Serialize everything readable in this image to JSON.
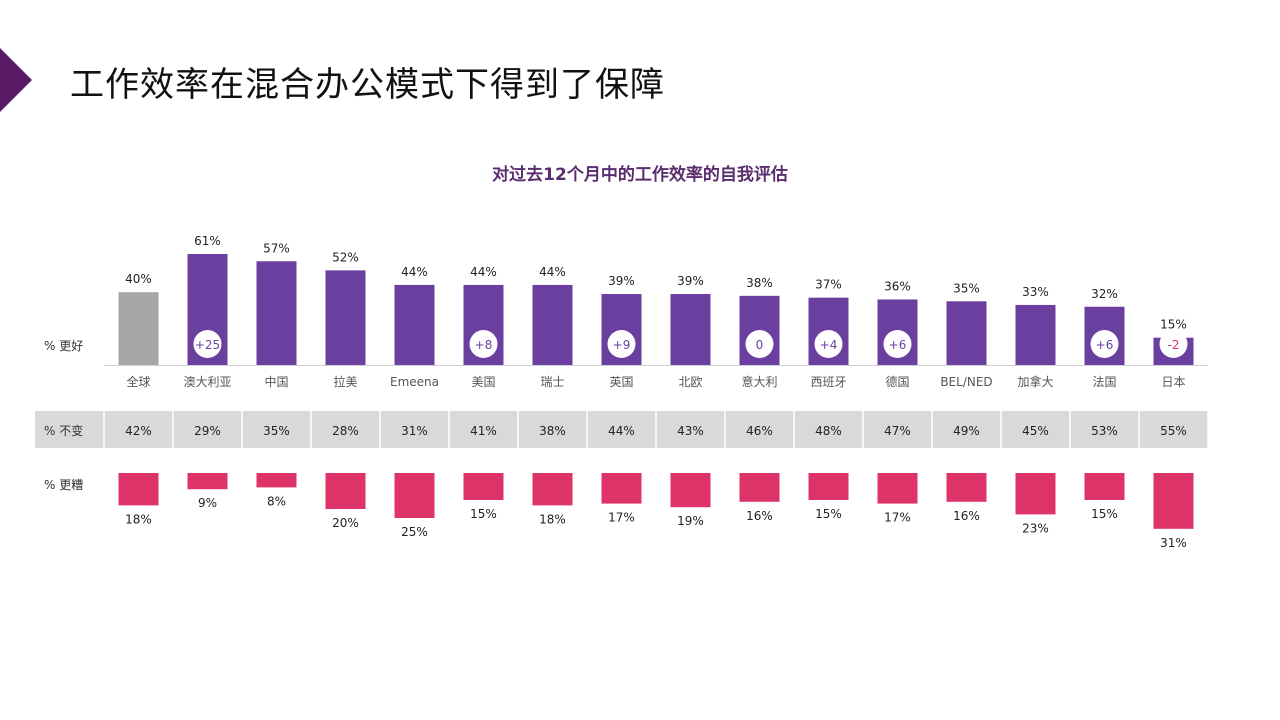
{
  "slide": {
    "title": "工作效率在混合办公模式下得到了保障"
  },
  "colors": {
    "accent": "#5a1a66",
    "better_bar": "#6b3fa0",
    "global_bar": "#a6a6a6",
    "worse_bar": "#de3368",
    "same_row_bg": "#d9d9d9",
    "negative_delta": "#de3368"
  },
  "chart_data": {
    "type": "bar",
    "title": "对过去12个月中的工作效率的自我评估",
    "categories": [
      "全球",
      "澳大利亚",
      "中国",
      "拉美",
      "Emeena",
      "美国",
      "瑞士",
      "英国",
      "北欧",
      "意大利",
      "西班牙",
      "德国",
      "BEL/NED",
      "加拿大",
      "法国",
      "日本"
    ],
    "row_labels": {
      "better": "% 更好",
      "same": "% 不变",
      "worse": "% 更糟"
    },
    "series": [
      {
        "name": "% 更好",
        "values": [
          40,
          61,
          57,
          52,
          44,
          44,
          44,
          39,
          39,
          38,
          37,
          36,
          35,
          33,
          32,
          15
        ]
      },
      {
        "name": "% 不变",
        "values": [
          42,
          29,
          35,
          28,
          31,
          41,
          38,
          44,
          43,
          46,
          48,
          47,
          49,
          45,
          53,
          55
        ]
      },
      {
        "name": "% 更糟",
        "values": [
          18,
          9,
          8,
          20,
          25,
          15,
          18,
          17,
          19,
          16,
          15,
          17,
          16,
          23,
          15,
          31
        ]
      }
    ],
    "deltas": [
      "",
      "+25",
      "",
      "",
      "",
      "+8",
      "",
      "+9",
      "",
      "0",
      "+4",
      "+6",
      "",
      "",
      "+6",
      "-2"
    ],
    "legend": "none",
    "grid": false
  }
}
